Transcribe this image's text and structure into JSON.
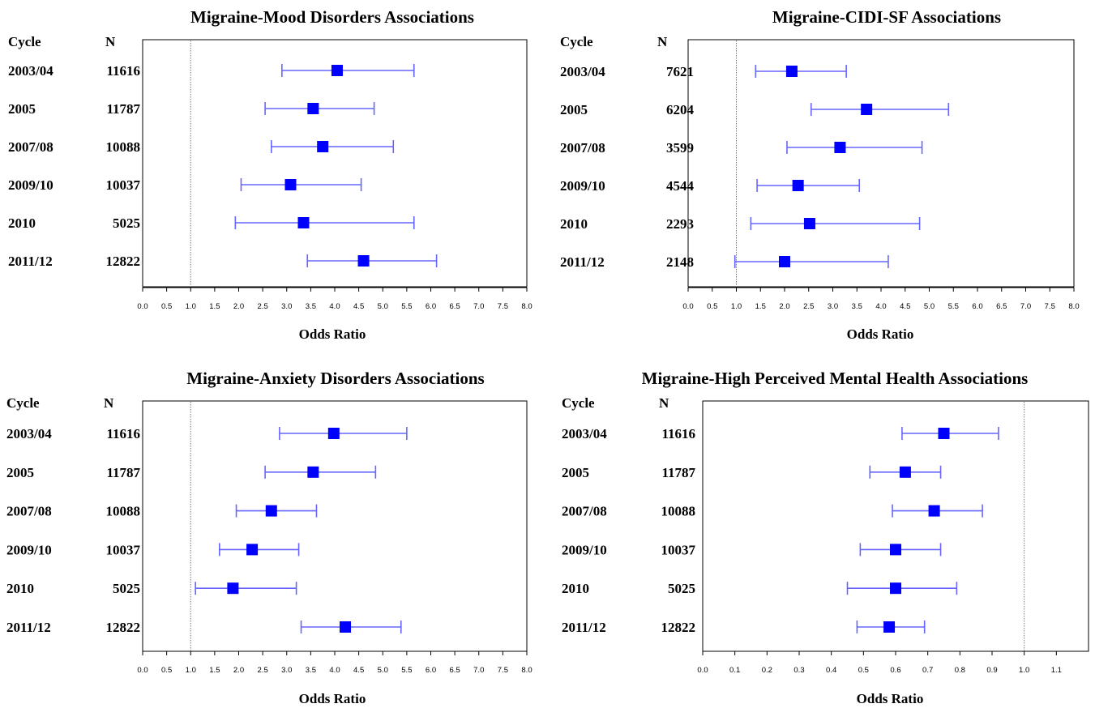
{
  "chart_data": [
    {
      "type": "forest",
      "title": "Migraine-Mood Disorders Associations",
      "xlabel": "Odds Ratio",
      "row_header": {
        "cycle": "Cycle",
        "n": "N"
      },
      "xlim": [
        0.0,
        8.0
      ],
      "xticks": [
        "0.0",
        "0.5",
        "1.0",
        "1.5",
        "2.0",
        "2.5",
        "3.0",
        "3.5",
        "4.0",
        "4.5",
        "5.0",
        "5.5",
        "6.0",
        "6.5",
        "7.0",
        "7.5",
        "8.0"
      ],
      "reference_line": 1.0,
      "rows": [
        {
          "cycle": "2003/04",
          "n": "11616",
          "or": 4.05,
          "lower": 2.9,
          "upper": 5.65
        },
        {
          "cycle": "2005",
          "n": "11787",
          "or": 3.55,
          "lower": 2.55,
          "upper": 4.82
        },
        {
          "cycle": "2007/08",
          "n": "10088",
          "or": 3.75,
          "lower": 2.68,
          "upper": 5.22
        },
        {
          "cycle": "2009/10",
          "n": "10037",
          "or": 3.08,
          "lower": 2.05,
          "upper": 4.55
        },
        {
          "cycle": "2010",
          "n": "5025",
          "or": 3.35,
          "lower": 1.93,
          "upper": 5.65
        },
        {
          "cycle": "2011/12",
          "n": "12822",
          "or": 4.6,
          "lower": 3.43,
          "upper": 6.12
        }
      ]
    },
    {
      "type": "forest",
      "title": "Migraine-CIDI-SF Associations",
      "xlabel": "Odds Ratio",
      "row_header": {
        "cycle": "Cycle",
        "n": "N"
      },
      "xlim": [
        0.0,
        8.0
      ],
      "xticks": [
        "0.0",
        "0.5",
        "1.0",
        "1.5",
        "2.0",
        "2.5",
        "3.0",
        "3.5",
        "4.0",
        "4.5",
        "5.0",
        "5.5",
        "6.0",
        "6.5",
        "7.0",
        "7.5",
        "8.0"
      ],
      "reference_line": 1.0,
      "rows": [
        {
          "cycle": "2003/04",
          "n": "7621",
          "or": 2.15,
          "lower": 1.4,
          "upper": 3.28
        },
        {
          "cycle": "2005",
          "n": "6204",
          "or": 3.7,
          "lower": 2.55,
          "upper": 5.4
        },
        {
          "cycle": "2007/08",
          "n": "3599",
          "or": 3.15,
          "lower": 2.05,
          "upper": 4.85
        },
        {
          "cycle": "2009/10",
          "n": "4544",
          "or": 2.28,
          "lower": 1.43,
          "upper": 3.55
        },
        {
          "cycle": "2010",
          "n": "2293",
          "or": 2.52,
          "lower": 1.3,
          "upper": 4.8
        },
        {
          "cycle": "2011/12",
          "n": "2148",
          "or": 2.0,
          "lower": 0.97,
          "upper": 4.15
        }
      ]
    },
    {
      "type": "forest",
      "title": "Migraine-Anxiety Disorders Associations",
      "xlabel": "Odds Ratio",
      "row_header": {
        "cycle": "Cycle",
        "n": "N"
      },
      "xlim": [
        0.0,
        8.0
      ],
      "xticks": [
        "0.0",
        "0.5",
        "1.0",
        "1.5",
        "2.0",
        "2.5",
        "3.0",
        "3.5",
        "4.0",
        "4.5",
        "5.0",
        "5.5",
        "6.0",
        "6.5",
        "7.0",
        "7.5",
        "8.0"
      ],
      "reference_line": 1.0,
      "rows": [
        {
          "cycle": "2003/04",
          "n": "11616",
          "or": 3.98,
          "lower": 2.85,
          "upper": 5.5
        },
        {
          "cycle": "2005",
          "n": "11787",
          "or": 3.55,
          "lower": 2.55,
          "upper": 4.85
        },
        {
          "cycle": "2007/08",
          "n": "10088",
          "or": 2.68,
          "lower": 1.95,
          "upper": 3.62
        },
        {
          "cycle": "2009/10",
          "n": "10037",
          "or": 2.28,
          "lower": 1.6,
          "upper": 3.25
        },
        {
          "cycle": "2010",
          "n": "5025",
          "or": 1.88,
          "lower": 1.1,
          "upper": 3.2
        },
        {
          "cycle": "2011/12",
          "n": "12822",
          "or": 4.22,
          "lower": 3.3,
          "upper": 5.38
        }
      ]
    },
    {
      "type": "forest",
      "title": "Migraine-High Perceived Mental Health Associations",
      "xlabel": "Odds Ratio",
      "row_header": {
        "cycle": "Cycle",
        "n": "N"
      },
      "xlim": [
        0.0,
        1.2
      ],
      "xticks": [
        "0.0",
        "0.1",
        "0.2",
        "0.3",
        "0.4",
        "0.5",
        "0.6",
        "0.7",
        "0.8",
        "0.9",
        "1.0",
        "1.1"
      ],
      "reference_line": 1.0,
      "rows": [
        {
          "cycle": "2003/04",
          "n": "11616",
          "or": 0.75,
          "lower": 0.62,
          "upper": 0.92
        },
        {
          "cycle": "2005",
          "n": "11787",
          "or": 0.63,
          "lower": 0.52,
          "upper": 0.74
        },
        {
          "cycle": "2007/08",
          "n": "10088",
          "or": 0.72,
          "lower": 0.59,
          "upper": 0.87
        },
        {
          "cycle": "2009/10",
          "n": "10037",
          "or": 0.6,
          "lower": 0.49,
          "upper": 0.74
        },
        {
          "cycle": "2010",
          "n": "5025",
          "or": 0.6,
          "lower": 0.45,
          "upper": 0.79
        },
        {
          "cycle": "2011/12",
          "n": "12822",
          "or": 0.58,
          "lower": 0.48,
          "upper": 0.69
        }
      ]
    }
  ],
  "colors": {
    "marker": "#0000ff",
    "ci_line": "#6666ff",
    "reference_line": "#777777",
    "axis": "#000000",
    "text": "#000000"
  }
}
